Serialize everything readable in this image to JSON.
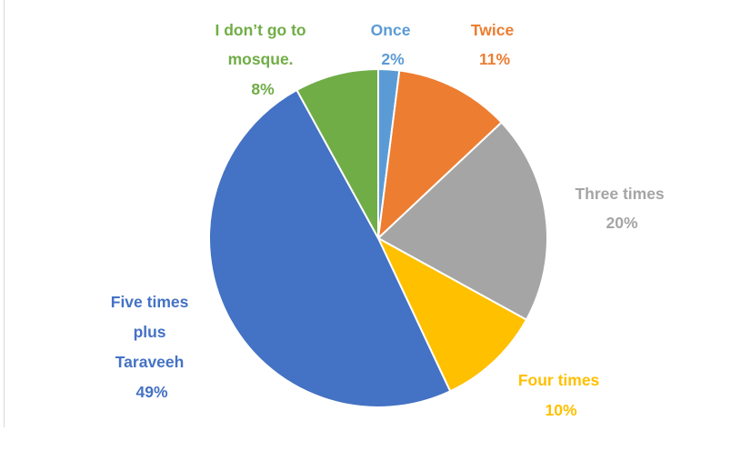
{
  "chart_data": {
    "type": "pie",
    "title": "",
    "slices": [
      {
        "label": "Once",
        "percent_label": "2%",
        "value": 2,
        "color": "#5B9BD5"
      },
      {
        "label": "Twice",
        "percent_label": "11%",
        "value": 11,
        "color": "#ED7D31"
      },
      {
        "label": "Three times",
        "percent_label": "20%",
        "value": 20,
        "color": "#A5A5A5"
      },
      {
        "label": "Four times",
        "percent_label": "10%",
        "value": 10,
        "color": "#FFC000"
      },
      {
        "label": "Five times plus Taraveeh",
        "percent_label": "49%",
        "value": 49,
        "color": "#4472C4"
      },
      {
        "label": "I don’t go to mosque.",
        "percent_label": "8%",
        "value": 8,
        "color": "#70AD47"
      }
    ],
    "start_angle": "12 o'clock",
    "direction": "clockwise",
    "legend": "none (labels beside slices)"
  },
  "label_lines": {
    "once": [
      "Once",
      "2%"
    ],
    "twice": [
      "Twice",
      "11%"
    ],
    "three": [
      "Three times",
      "20%"
    ],
    "four": [
      "Four times",
      "10%"
    ],
    "five": [
      "Five times",
      "plus",
      "Taraveeh",
      "49%"
    ],
    "none": [
      "I don’t go to",
      "mosque.",
      "8%"
    ]
  }
}
